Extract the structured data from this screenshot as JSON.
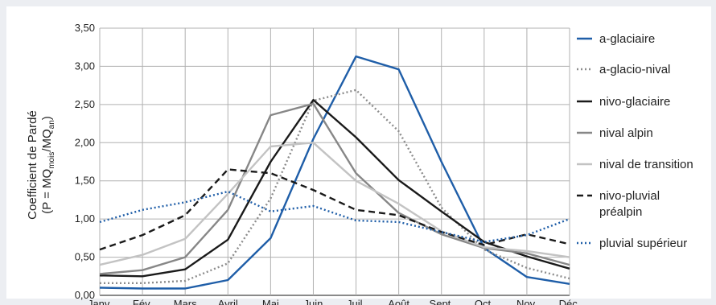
{
  "chart_data": {
    "type": "line",
    "ylabel_line1": "Coefficient de Pardé",
    "ylabel_formula": {
      "prefix": "(P = MQ",
      "sub1": "mois",
      "mid": "/MQ",
      "sub2": "an",
      "suffix": ")"
    },
    "categories": [
      "Janv.",
      "Fév.",
      "Mars",
      "Avril",
      "Mai",
      "Juin",
      "Juil.",
      "Août",
      "Sept.",
      "Oct.",
      "Nov.",
      "Déc."
    ],
    "ylim": [
      0,
      3.5
    ],
    "yticks": [
      0,
      0.5,
      1,
      1.5,
      2,
      2.5,
      3,
      3.5
    ],
    "ytick_labels": [
      "0,00",
      "0,50",
      "1,00",
      "1,50",
      "2,00",
      "2,50",
      "3,00",
      "3,50"
    ],
    "grid": true,
    "legend_position": "right",
    "series": [
      {
        "name": "a-glaciaire",
        "color": "#1f5ea8",
        "dash": "solid",
        "values": [
          0.1,
          0.09,
          0.09,
          0.2,
          0.75,
          2.05,
          3.13,
          2.96,
          1.75,
          0.62,
          0.24,
          0.15
        ]
      },
      {
        "name": "a-glacio-nival",
        "color": "#8c8c8c",
        "dash": "dotted",
        "values": [
          0.16,
          0.16,
          0.19,
          0.42,
          1.27,
          2.55,
          2.69,
          2.15,
          1.15,
          0.6,
          0.36,
          0.22
        ]
      },
      {
        "name": "nivo-glaciaire",
        "color": "#1a1a1a",
        "dash": "solid",
        "values": [
          0.26,
          0.25,
          0.34,
          0.73,
          1.75,
          2.56,
          2.07,
          1.51,
          1.1,
          0.7,
          0.51,
          0.35
        ]
      },
      {
        "name": "nival alpin",
        "color": "#878787",
        "dash": "solid",
        "values": [
          0.28,
          0.33,
          0.5,
          1.12,
          2.36,
          2.51,
          1.6,
          1.08,
          0.8,
          0.62,
          0.55,
          0.4
        ]
      },
      {
        "name": "nival de transition",
        "color": "#c3c3c3",
        "dash": "solid",
        "values": [
          0.4,
          0.53,
          0.74,
          1.33,
          1.95,
          2.0,
          1.5,
          1.2,
          0.84,
          0.63,
          0.58,
          0.5
        ]
      },
      {
        "name": "nivo-pluvial\npréalpin",
        "color": "#1a1a1a",
        "dash": "dashed",
        "values": [
          0.6,
          0.79,
          1.05,
          1.65,
          1.6,
          1.38,
          1.12,
          1.05,
          0.83,
          0.66,
          0.8,
          0.67
        ]
      },
      {
        "name": "pluvial supérieur",
        "color": "#1f5ea8",
        "dash": "dotted",
        "values": [
          0.96,
          1.12,
          1.22,
          1.36,
          1.1,
          1.17,
          0.98,
          0.96,
          0.83,
          0.7,
          0.79,
          1.0
        ]
      }
    ]
  }
}
